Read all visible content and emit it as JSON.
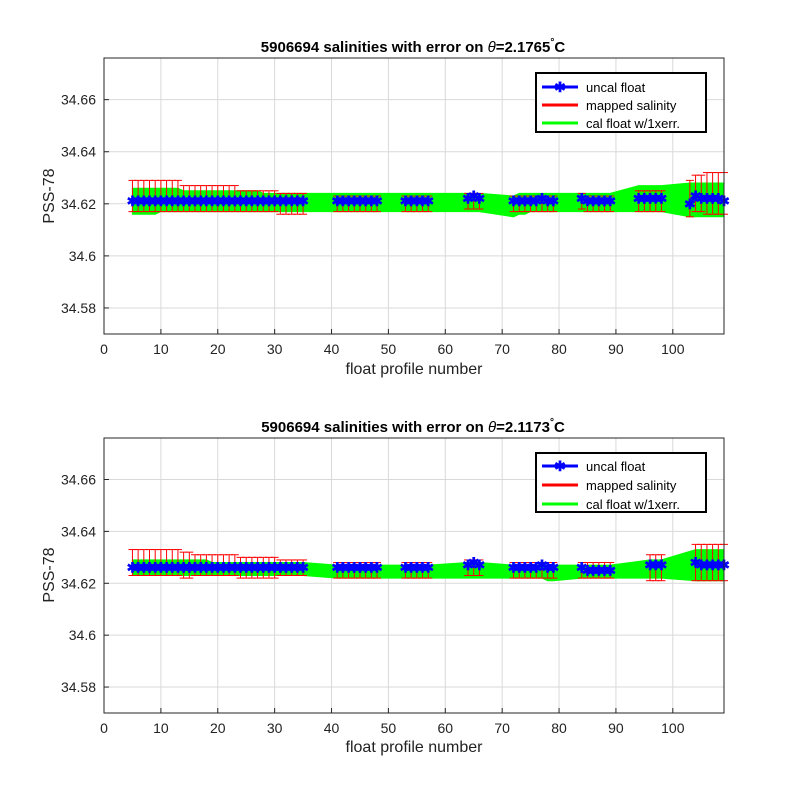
{
  "chart_data": [
    {
      "type": "line",
      "title_prefix": "5906694 salinities with error on ",
      "title_theta": "θ",
      "title_value": "=2.1765",
      "title_degree": "°",
      "title_unit": "C",
      "xlabel": "float profile number",
      "ylabel": "PSS-78",
      "xlim": [
        0,
        109
      ],
      "ylim": [
        34.57,
        34.676
      ],
      "xticks": [
        0,
        10,
        20,
        30,
        40,
        50,
        60,
        70,
        80,
        90,
        100
      ],
      "yticks": [
        34.58,
        34.6,
        34.62,
        34.64,
        34.66
      ],
      "ytick_labels": [
        "34.58",
        "34.6",
        "34.62",
        "34.64",
        "34.66"
      ],
      "grid": true,
      "legend_position": "top-right",
      "legend": [
        "uncal float",
        "mapped salinity",
        "cal float w/1xerr."
      ],
      "colors": {
        "uncal": "#0000ff",
        "mapped": "#ff0000",
        "cal": "#00ff00"
      },
      "x": [
        5,
        6,
        7,
        8,
        9,
        10,
        11,
        12,
        13,
        14,
        15,
        16,
        17,
        18,
        19,
        20,
        21,
        22,
        23,
        24,
        25,
        26,
        27,
        28,
        29,
        30,
        31,
        32,
        33,
        34,
        35,
        41,
        42,
        43,
        44,
        45,
        46,
        47,
        48,
        53,
        54,
        55,
        56,
        57,
        64,
        65,
        66,
        72,
        73,
        74,
        75,
        76,
        77,
        78,
        79,
        84,
        85,
        86,
        87,
        88,
        89,
        94,
        95,
        96,
        97,
        98,
        103,
        104,
        105,
        106,
        107,
        108,
        109
      ],
      "uncal_salinity": [
        34.621,
        34.621,
        34.621,
        34.621,
        34.621,
        34.621,
        34.621,
        34.621,
        34.621,
        34.621,
        34.621,
        34.621,
        34.621,
        34.621,
        34.621,
        34.621,
        34.621,
        34.621,
        34.621,
        34.621,
        34.621,
        34.621,
        34.621,
        34.621,
        34.621,
        34.621,
        34.621,
        34.621,
        34.621,
        34.621,
        34.621,
        34.621,
        34.621,
        34.621,
        34.621,
        34.621,
        34.621,
        34.621,
        34.621,
        34.621,
        34.621,
        34.621,
        34.621,
        34.621,
        34.622,
        34.623,
        34.622,
        34.621,
        34.621,
        34.621,
        34.621,
        34.621,
        34.622,
        34.621,
        34.621,
        34.622,
        34.621,
        34.621,
        34.621,
        34.621,
        34.621,
        34.622,
        34.622,
        34.622,
        34.622,
        34.622,
        34.62,
        34.623,
        34.622,
        34.622,
        34.622,
        34.622,
        34.621
      ],
      "mapped_salinity": [
        34.623,
        34.623,
        34.623,
        34.623,
        34.623,
        34.623,
        34.623,
        34.623,
        34.623,
        34.622,
        34.622,
        34.622,
        34.622,
        34.622,
        34.622,
        34.622,
        34.622,
        34.622,
        34.622,
        34.621,
        34.621,
        34.621,
        34.621,
        34.621,
        34.621,
        34.621,
        34.62,
        34.62,
        34.62,
        34.62,
        34.62,
        34.62,
        34.62,
        34.62,
        34.62,
        34.62,
        34.62,
        34.62,
        34.62,
        34.62,
        34.62,
        34.62,
        34.62,
        34.62,
        34.621,
        34.621,
        34.621,
        34.62,
        34.62,
        34.62,
        34.62,
        34.62,
        34.62,
        34.62,
        34.62,
        34.621,
        34.62,
        34.62,
        34.62,
        34.62,
        34.62,
        34.621,
        34.621,
        34.621,
        34.621,
        34.621,
        34.622,
        34.624,
        34.624,
        34.624,
        34.624,
        34.624,
        34.624
      ],
      "mapped_error": [
        0.006,
        0.006,
        0.006,
        0.006,
        0.006,
        0.006,
        0.006,
        0.006,
        0.006,
        0.005,
        0.005,
        0.005,
        0.005,
        0.005,
        0.005,
        0.005,
        0.005,
        0.005,
        0.005,
        0.004,
        0.004,
        0.004,
        0.004,
        0.004,
        0.004,
        0.004,
        0.004,
        0.004,
        0.004,
        0.004,
        0.004,
        0.003,
        0.003,
        0.003,
        0.003,
        0.003,
        0.003,
        0.003,
        0.003,
        0.003,
        0.003,
        0.003,
        0.003,
        0.003,
        0.003,
        0.003,
        0.003,
        0.003,
        0.003,
        0.003,
        0.003,
        0.003,
        0.003,
        0.003,
        0.003,
        0.003,
        0.003,
        0.003,
        0.003,
        0.003,
        0.003,
        0.004,
        0.004,
        0.004,
        0.004,
        0.004,
        0.007,
        0.007,
        0.007,
        0.008,
        0.008,
        0.008,
        0.008
      ],
      "cal_lower": [
        34.616,
        34.616,
        34.616,
        34.616,
        34.616,
        34.617,
        34.617,
        34.617,
        34.617,
        34.617,
        34.617,
        34.617,
        34.617,
        34.617,
        34.617,
        34.617,
        34.617,
        34.617,
        34.617,
        34.617,
        34.617,
        34.617,
        34.617,
        34.617,
        34.617,
        34.617,
        34.617,
        34.617,
        34.617,
        34.617,
        34.617,
        34.617,
        34.617,
        34.617,
        34.617,
        34.617,
        34.617,
        34.617,
        34.617,
        34.617,
        34.617,
        34.617,
        34.617,
        34.617,
        34.617,
        34.617,
        34.617,
        34.615,
        34.616,
        34.616,
        34.617,
        34.617,
        34.617,
        34.617,
        34.617,
        34.617,
        34.617,
        34.617,
        34.617,
        34.617,
        34.617,
        34.617,
        34.617,
        34.617,
        34.617,
        34.617,
        34.615,
        34.615,
        34.615,
        34.615,
        34.615,
        34.615,
        34.615
      ],
      "cal_upper": [
        34.626,
        34.626,
        34.626,
        34.626,
        34.626,
        34.626,
        34.626,
        34.626,
        34.626,
        34.625,
        34.625,
        34.625,
        34.625,
        34.625,
        34.625,
        34.625,
        34.625,
        34.625,
        34.625,
        34.625,
        34.625,
        34.625,
        34.625,
        34.624,
        34.624,
        34.624,
        34.624,
        34.624,
        34.624,
        34.624,
        34.624,
        34.624,
        34.624,
        34.624,
        34.624,
        34.624,
        34.624,
        34.624,
        34.624,
        34.624,
        34.624,
        34.624,
        34.624,
        34.624,
        34.624,
        34.624,
        34.624,
        34.623,
        34.624,
        34.624,
        34.624,
        34.624,
        34.624,
        34.624,
        34.624,
        34.624,
        34.624,
        34.624,
        34.624,
        34.624,
        34.624,
        34.627,
        34.627,
        34.627,
        34.627,
        34.627,
        34.628,
        34.628,
        34.628,
        34.628,
        34.628,
        34.628,
        34.628
      ]
    },
    {
      "type": "line",
      "title_prefix": "5906694 salinities with error on ",
      "title_theta": "θ",
      "title_value": "=2.1173",
      "title_degree": "°",
      "title_unit": "C",
      "xlabel": "float profile number",
      "ylabel": "PSS-78",
      "xlim": [
        0,
        109
      ],
      "ylim": [
        34.57,
        34.676
      ],
      "xticks": [
        0,
        10,
        20,
        30,
        40,
        50,
        60,
        70,
        80,
        90,
        100
      ],
      "yticks": [
        34.58,
        34.6,
        34.62,
        34.64,
        34.66
      ],
      "ytick_labels": [
        "34.58",
        "34.6",
        "34.62",
        "34.64",
        "34.66"
      ],
      "grid": true,
      "legend_position": "top-right",
      "legend": [
        "uncal float",
        "mapped salinity",
        "cal float w/1xerr."
      ],
      "colors": {
        "uncal": "#0000ff",
        "mapped": "#ff0000",
        "cal": "#00ff00"
      },
      "x": [
        5,
        6,
        7,
        8,
        9,
        10,
        11,
        12,
        13,
        14,
        15,
        16,
        17,
        18,
        19,
        20,
        21,
        22,
        23,
        24,
        25,
        26,
        27,
        28,
        29,
        30,
        31,
        32,
        33,
        34,
        35,
        41,
        42,
        43,
        44,
        45,
        46,
        47,
        48,
        53,
        54,
        55,
        56,
        57,
        64,
        65,
        66,
        72,
        73,
        74,
        75,
        76,
        77,
        78,
        79,
        84,
        85,
        86,
        87,
        88,
        89,
        96,
        97,
        98,
        104,
        105,
        106,
        107,
        108,
        109
      ],
      "uncal_salinity": [
        34.626,
        34.626,
        34.626,
        34.626,
        34.626,
        34.626,
        34.626,
        34.626,
        34.626,
        34.626,
        34.626,
        34.626,
        34.626,
        34.626,
        34.626,
        34.626,
        34.626,
        34.626,
        34.626,
        34.626,
        34.626,
        34.626,
        34.626,
        34.626,
        34.626,
        34.626,
        34.626,
        34.626,
        34.626,
        34.626,
        34.626,
        34.626,
        34.626,
        34.626,
        34.626,
        34.626,
        34.626,
        34.626,
        34.626,
        34.626,
        34.626,
        34.626,
        34.626,
        34.626,
        34.627,
        34.628,
        34.627,
        34.626,
        34.626,
        34.626,
        34.626,
        34.626,
        34.627,
        34.626,
        34.626,
        34.626,
        34.625,
        34.625,
        34.625,
        34.625,
        34.625,
        34.627,
        34.627,
        34.627,
        34.628,
        34.627,
        34.627,
        34.627,
        34.627,
        34.627
      ],
      "mapped_salinity": [
        34.628,
        34.628,
        34.628,
        34.628,
        34.628,
        34.628,
        34.628,
        34.628,
        34.628,
        34.627,
        34.627,
        34.627,
        34.627,
        34.627,
        34.627,
        34.627,
        34.627,
        34.627,
        34.627,
        34.626,
        34.626,
        34.626,
        34.626,
        34.626,
        34.626,
        34.626,
        34.626,
        34.626,
        34.626,
        34.626,
        34.626,
        34.625,
        34.625,
        34.625,
        34.625,
        34.625,
        34.625,
        34.625,
        34.625,
        34.625,
        34.625,
        34.625,
        34.625,
        34.625,
        34.626,
        34.626,
        34.626,
        34.625,
        34.625,
        34.625,
        34.625,
        34.625,
        34.625,
        34.625,
        34.625,
        34.625,
        34.625,
        34.625,
        34.625,
        34.625,
        34.625,
        34.626,
        34.626,
        34.626,
        34.628,
        34.628,
        34.628,
        34.628,
        34.628,
        34.628
      ],
      "mapped_error": [
        0.005,
        0.005,
        0.005,
        0.005,
        0.005,
        0.005,
        0.005,
        0.005,
        0.005,
        0.005,
        0.005,
        0.004,
        0.004,
        0.004,
        0.004,
        0.004,
        0.004,
        0.004,
        0.004,
        0.004,
        0.004,
        0.004,
        0.004,
        0.004,
        0.004,
        0.004,
        0.003,
        0.003,
        0.003,
        0.003,
        0.003,
        0.003,
        0.003,
        0.003,
        0.003,
        0.003,
        0.003,
        0.003,
        0.003,
        0.003,
        0.003,
        0.003,
        0.003,
        0.003,
        0.003,
        0.003,
        0.003,
        0.003,
        0.003,
        0.003,
        0.003,
        0.003,
        0.003,
        0.003,
        0.003,
        0.003,
        0.003,
        0.003,
        0.003,
        0.003,
        0.003,
        0.005,
        0.005,
        0.005,
        0.007,
        0.007,
        0.007,
        0.007,
        0.007,
        0.007
      ],
      "cal_lower": [
        34.623,
        34.623,
        34.623,
        34.623,
        34.623,
        34.623,
        34.623,
        34.623,
        34.623,
        34.623,
        34.623,
        34.623,
        34.623,
        34.623,
        34.623,
        34.623,
        34.623,
        34.623,
        34.623,
        34.623,
        34.623,
        34.623,
        34.623,
        34.623,
        34.623,
        34.623,
        34.623,
        34.623,
        34.623,
        34.623,
        34.623,
        34.622,
        34.622,
        34.622,
        34.622,
        34.622,
        34.622,
        34.622,
        34.622,
        34.622,
        34.622,
        34.622,
        34.622,
        34.622,
        34.622,
        34.622,
        34.622,
        34.622,
        34.622,
        34.622,
        34.622,
        34.622,
        34.622,
        34.621,
        34.621,
        34.622,
        34.622,
        34.622,
        34.622,
        34.622,
        34.622,
        34.622,
        34.622,
        34.622,
        34.621,
        34.621,
        34.621,
        34.621,
        34.621,
        34.621
      ],
      "cal_upper": [
        34.629,
        34.629,
        34.629,
        34.629,
        34.629,
        34.629,
        34.629,
        34.629,
        34.629,
        34.629,
        34.629,
        34.629,
        34.629,
        34.629,
        34.628,
        34.628,
        34.628,
        34.628,
        34.628,
        34.628,
        34.628,
        34.628,
        34.628,
        34.628,
        34.628,
        34.628,
        34.628,
        34.628,
        34.628,
        34.628,
        34.628,
        34.627,
        34.627,
        34.627,
        34.627,
        34.627,
        34.627,
        34.627,
        34.627,
        34.627,
        34.627,
        34.627,
        34.627,
        34.627,
        34.628,
        34.628,
        34.628,
        34.627,
        34.627,
        34.627,
        34.627,
        34.627,
        34.627,
        34.627,
        34.627,
        34.627,
        34.627,
        34.627,
        34.627,
        34.627,
        34.627,
        34.629,
        34.629,
        34.629,
        34.633,
        34.633,
        34.633,
        34.633,
        34.633,
        34.633
      ]
    }
  ]
}
